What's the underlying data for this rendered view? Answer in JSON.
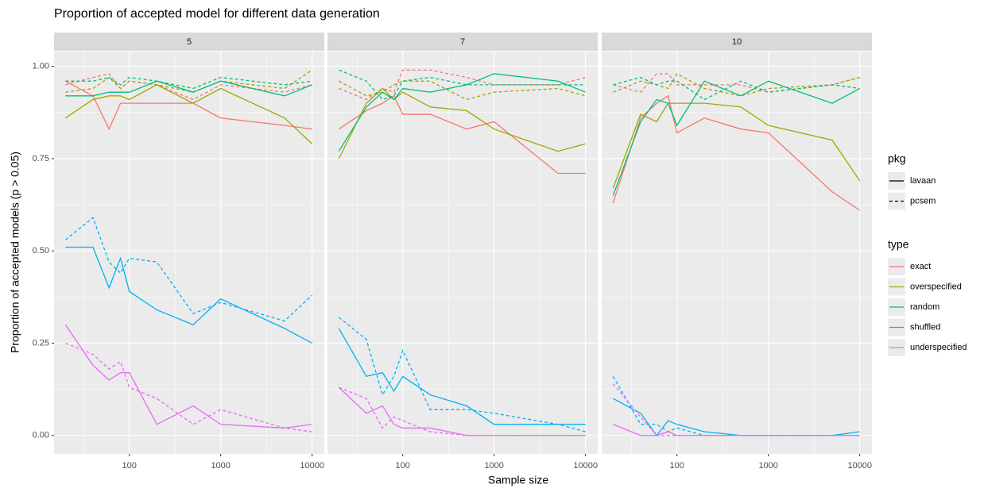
{
  "chart_data": {
    "type": "line",
    "title": "Proportion of accepted model for different data generation",
    "xlabel": "Sample size",
    "ylabel": "Proportion of accepted models (p > 0.05)",
    "log": "x",
    "grid": true,
    "x": [
      20,
      40,
      60,
      80,
      100,
      200,
      500,
      1000,
      5000,
      10000
    ],
    "xlim": [
      15,
      13600
    ],
    "xticks": [
      100,
      1000,
      10000
    ],
    "ylim": [
      -0.05,
      1.04
    ],
    "yticks": [
      {
        "value": 0,
        "label": "0.00"
      },
      {
        "value": 0.25,
        "label": "0.25"
      },
      {
        "value": 0.5,
        "label": "0.50"
      },
      {
        "value": 0.75,
        "label": "0.75"
      },
      {
        "value": 1,
        "label": "1.00"
      }
    ],
    "legend": {
      "pkg": {
        "title": "pkg",
        "entries": [
          {
            "name": "lavaan",
            "dash": "solid"
          },
          {
            "name": "pcsem",
            "dash": "dashed"
          }
        ]
      },
      "type": {
        "title": "type",
        "entries": [
          {
            "name": "exact",
            "color": "#F8766D"
          },
          {
            "name": "overspecified",
            "color": "#A3A500"
          },
          {
            "name": "random",
            "color": "#00BF7D"
          },
          {
            "name": "shuffled",
            "color": "#00B0F6"
          },
          {
            "name": "underspecified",
            "color": "#E76BF3"
          }
        ]
      }
    },
    "facets": [
      {
        "label": "5",
        "series": [
          {
            "type": "exact",
            "pkg": "lavaan",
            "values": [
              0.96,
              0.92,
              0.83,
              0.9,
              0.9,
              0.9,
              0.9,
              0.86,
              0.84,
              0.83
            ]
          },
          {
            "type": "exact",
            "pkg": "pcsem",
            "values": [
              0.95,
              0.97,
              0.98,
              0.94,
              0.96,
              0.95,
              0.91,
              0.95,
              0.93,
              0.95
            ]
          },
          {
            "type": "overspecified",
            "pkg": "lavaan",
            "values": [
              0.86,
              0.91,
              0.92,
              0.92,
              0.91,
              0.95,
              0.9,
              0.94,
              0.86,
              0.79
            ]
          },
          {
            "type": "overspecified",
            "pkg": "pcsem",
            "values": [
              0.93,
              0.94,
              0.97,
              0.94,
              0.96,
              0.95,
              0.93,
              0.96,
              0.94,
              0.99
            ]
          },
          {
            "type": "random",
            "pkg": "lavaan",
            "values": [
              0.92,
              0.92,
              0.93,
              0.93,
              0.93,
              0.96,
              0.93,
              0.96,
              0.92,
              0.95
            ]
          },
          {
            "type": "random",
            "pkg": "pcsem",
            "values": [
              0.96,
              0.96,
              0.97,
              0.95,
              0.97,
              0.96,
              0.94,
              0.97,
              0.95,
              0.96
            ]
          },
          {
            "type": "shuffled",
            "pkg": "lavaan",
            "values": [
              0.51,
              0.51,
              0.4,
              0.48,
              0.39,
              0.34,
              0.3,
              0.37,
              0.29,
              0.25
            ]
          },
          {
            "type": "shuffled",
            "pkg": "pcsem",
            "values": [
              0.53,
              0.59,
              0.47,
              0.44,
              0.48,
              0.47,
              0.33,
              0.36,
              0.31,
              0.38
            ]
          },
          {
            "type": "underspecified",
            "pkg": "lavaan",
            "values": [
              0.3,
              0.19,
              0.15,
              0.17,
              0.17,
              0.03,
              0.08,
              0.03,
              0.02,
              0.03
            ]
          },
          {
            "type": "underspecified",
            "pkg": "pcsem",
            "values": [
              0.25,
              0.22,
              0.18,
              0.2,
              0.13,
              0.1,
              0.03,
              0.07,
              0.02,
              0.01
            ]
          }
        ]
      },
      {
        "label": "7",
        "series": [
          {
            "type": "exact",
            "pkg": "lavaan",
            "values": [
              0.83,
              0.88,
              0.9,
              0.92,
              0.87,
              0.87,
              0.83,
              0.85,
              0.71,
              0.71
            ]
          },
          {
            "type": "exact",
            "pkg": "pcsem",
            "values": [
              0.94,
              0.91,
              0.94,
              0.93,
              0.99,
              0.99,
              0.97,
              0.95,
              0.95,
              0.97
            ]
          },
          {
            "type": "overspecified",
            "pkg": "lavaan",
            "values": [
              0.75,
              0.9,
              0.94,
              0.91,
              0.93,
              0.89,
              0.88,
              0.83,
              0.77,
              0.79
            ]
          },
          {
            "type": "overspecified",
            "pkg": "pcsem",
            "values": [
              0.96,
              0.92,
              0.93,
              0.95,
              0.96,
              0.96,
              0.91,
              0.93,
              0.94,
              0.92
            ]
          },
          {
            "type": "random",
            "pkg": "lavaan",
            "values": [
              0.77,
              0.89,
              0.93,
              0.91,
              0.94,
              0.93,
              0.95,
              0.98,
              0.96,
              0.93
            ]
          },
          {
            "type": "random",
            "pkg": "pcsem",
            "values": [
              0.99,
              0.96,
              0.91,
              0.92,
              0.96,
              0.97,
              0.95,
              0.95,
              0.95,
              0.95
            ]
          },
          {
            "type": "shuffled",
            "pkg": "lavaan",
            "values": [
              0.29,
              0.16,
              0.17,
              0.12,
              0.16,
              0.11,
              0.08,
              0.03,
              0.03,
              0.03
            ]
          },
          {
            "type": "shuffled",
            "pkg": "pcsem",
            "values": [
              0.32,
              0.26,
              0.11,
              0.16,
              0.23,
              0.07,
              0.07,
              0.06,
              0.03,
              0.01
            ]
          },
          {
            "type": "underspecified",
            "pkg": "lavaan",
            "values": [
              0.13,
              0.06,
              0.08,
              0.03,
              0.02,
              0.02,
              0.0,
              0.0,
              0.0,
              0.0
            ]
          },
          {
            "type": "underspecified",
            "pkg": "pcsem",
            "values": [
              0.13,
              0.1,
              0.02,
              0.05,
              0.04,
              0.01,
              0.0,
              0.0,
              0.0,
              0.0
            ]
          }
        ]
      },
      {
        "label": "10",
        "series": [
          {
            "type": "exact",
            "pkg": "lavaan",
            "values": [
              0.63,
              0.86,
              0.9,
              0.92,
              0.82,
              0.86,
              0.83,
              0.82,
              0.66,
              0.61
            ]
          },
          {
            "type": "exact",
            "pkg": "pcsem",
            "values": [
              0.95,
              0.93,
              0.98,
              0.98,
              0.95,
              0.95,
              0.95,
              0.93,
              0.95,
              0.97
            ]
          },
          {
            "type": "overspecified",
            "pkg": "lavaan",
            "values": [
              0.67,
              0.87,
              0.85,
              0.9,
              0.9,
              0.9,
              0.89,
              0.84,
              0.8,
              0.69
            ]
          },
          {
            "type": "overspecified",
            "pkg": "pcsem",
            "values": [
              0.93,
              0.96,
              0.95,
              0.94,
              0.98,
              0.94,
              0.92,
              0.94,
              0.95,
              0.97
            ]
          },
          {
            "type": "random",
            "pkg": "lavaan",
            "values": [
              0.65,
              0.85,
              0.91,
              0.9,
              0.84,
              0.96,
              0.92,
              0.96,
              0.9,
              0.94
            ]
          },
          {
            "type": "random",
            "pkg": "pcsem",
            "values": [
              0.95,
              0.97,
              0.95,
              0.96,
              0.96,
              0.91,
              0.96,
              0.93,
              0.95,
              0.94
            ]
          },
          {
            "type": "shuffled",
            "pkg": "lavaan",
            "values": [
              0.1,
              0.06,
              0.0,
              0.04,
              0.03,
              0.01,
              0.0,
              0.0,
              0.0,
              0.01
            ]
          },
          {
            "type": "shuffled",
            "pkg": "pcsem",
            "values": [
              0.16,
              0.03,
              0.03,
              0.01,
              0.02,
              0.0,
              0.0,
              0.0,
              0.0,
              0.0
            ]
          },
          {
            "type": "underspecified",
            "pkg": "lavaan",
            "values": [
              0.03,
              0.0,
              0.0,
              0.01,
              0.0,
              0.0,
              0.0,
              0.0,
              0.0,
              0.0
            ]
          },
          {
            "type": "underspecified",
            "pkg": "pcsem",
            "values": [
              0.14,
              0.05,
              0.0,
              0.0,
              0.0,
              0.0,
              0.0,
              0.0,
              0.0,
              0.0
            ]
          }
        ]
      }
    ]
  }
}
